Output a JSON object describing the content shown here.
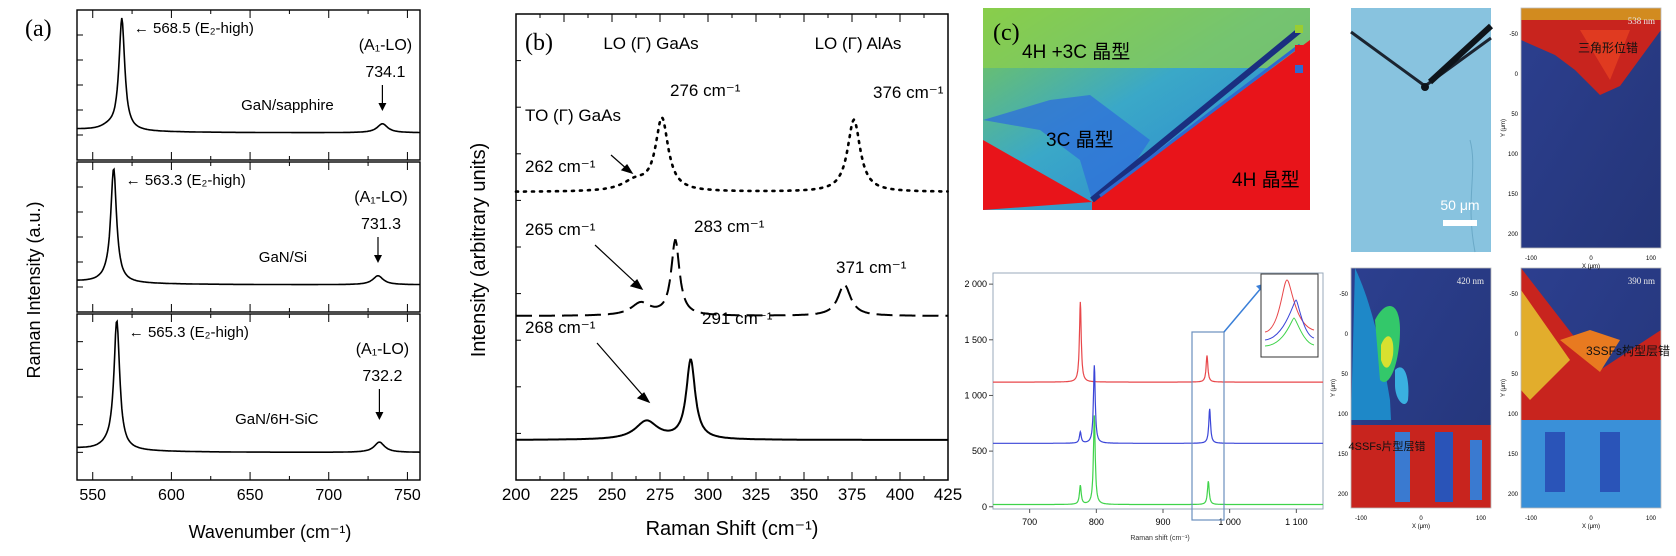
{
  "panel_a": {
    "label": "(a)",
    "ylabel": "Raman Intensity (a.u.)",
    "xlabel": "Wavenumber (cm⁻¹)",
    "xticks": [
      "550",
      "600",
      "650",
      "700",
      "750"
    ],
    "traces": [
      {
        "sample": "GaN/sapphire",
        "peak_label": "← 568.5 (E₂-high)",
        "mode_label": "(A₁-LO)",
        "mode_value": "734.1"
      },
      {
        "sample": "GaN/Si",
        "peak_label": "← 563.3 (E₂-high)",
        "mode_label": "(A₁-LO)",
        "mode_value": "731.3"
      },
      {
        "sample": "GaN/6H-SiC",
        "peak_label": "← 565.3 (E₂-high)",
        "mode_label": "(A₁-LO)",
        "mode_value": "732.2"
      }
    ]
  },
  "panel_b": {
    "label": "(b)",
    "ylabel": "Intensity (arbitrary units)",
    "xlabel": "Raman Shift (cm⁻¹)",
    "xticks": [
      "200",
      "225",
      "250",
      "275",
      "300",
      "325",
      "350",
      "375",
      "400",
      "425"
    ],
    "annotations": {
      "lo_gaas": "LO (Γ) GaAs",
      "lo_alas": "LO (Γ) AlAs",
      "to_gaas": "TO (Γ) GaAs",
      "a1": "276 cm⁻¹",
      "a2": "376 cm⁻¹",
      "a3": "262 cm⁻¹",
      "b1": "265 cm⁻¹",
      "b2": "283 cm⁻¹",
      "b3": "371 cm⁻¹",
      "c1": "268 cm⁻¹",
      "c2": "291 cm⁻¹"
    }
  },
  "panel_c": {
    "label": "(c)",
    "map_labels": {
      "poly": "4H +3C 晶型",
      "c3": "3C 晶型",
      "h4": "4H 晶型"
    },
    "scale_bar": "50 μm",
    "spectrum_xlabel": "Raman shift (cm⁻¹)",
    "spectrum_xticks": [
      "700",
      "800",
      "900",
      "1 000",
      "1 100"
    ],
    "spectrum_yticks": [
      "0",
      "500",
      "1 000",
      "1 500",
      "2 000"
    ],
    "maps": [
      {
        "nm": "538 nm",
        "text": "三角形位错"
      },
      {
        "nm": "420 nm",
        "text": "4SSFs片型层错"
      },
      {
        "nm": "390 nm",
        "text": "3SSFs构型层错"
      }
    ],
    "map_axis_x": "X (μm)",
    "map_axis_y": "Y (μm)",
    "map_xticks": [
      "-100",
      "0",
      "100"
    ],
    "map_yticks": [
      "-50",
      "0",
      "50",
      "100",
      "150",
      "200"
    ]
  },
  "chart_data": [
    {
      "type": "line",
      "title": "(a)",
      "xlabel": "Wavenumber (cm⁻¹)",
      "ylabel": "Raman Intensity (a.u.)",
      "xlim": [
        540,
        758
      ],
      "series": [
        {
          "name": "GaN/sapphire",
          "peaks": [
            {
              "x": 568.5,
              "label": "E₂-high",
              "rel": 1.0
            },
            {
              "x": 734.1,
              "label": "A₁-LO",
              "rel": 0.08
            }
          ]
        },
        {
          "name": "GaN/Si",
          "peaks": [
            {
              "x": 563.3,
              "label": "E₂-high",
              "rel": 1.0
            },
            {
              "x": 731.3,
              "label": "A₁-LO",
              "rel": 0.08
            }
          ]
        },
        {
          "name": "GaN/6H-SiC",
          "peaks": [
            {
              "x": 565.3,
              "label": "E₂-high",
              "rel": 1.0
            },
            {
              "x": 732.2,
              "label": "A₁-LO",
              "rel": 0.08
            }
          ]
        }
      ]
    },
    {
      "type": "line",
      "title": "(b)",
      "xlabel": "Raman Shift (cm⁻¹)",
      "ylabel": "Intensity (arbitrary units)",
      "xlim": [
        200,
        425
      ],
      "series": [
        {
          "style": "dotted",
          "peaks": [
            {
              "x": 262,
              "rel": 0.08
            },
            {
              "x": 276,
              "rel": 0.6
            },
            {
              "x": 376,
              "rel": 0.6
            }
          ]
        },
        {
          "style": "dashed",
          "peaks": [
            {
              "x": 265,
              "rel": 0.1
            },
            {
              "x": 283,
              "rel": 0.6
            },
            {
              "x": 371,
              "rel": 0.25
            }
          ]
        },
        {
          "style": "solid",
          "peaks": [
            {
              "x": 268,
              "rel": 0.14
            },
            {
              "x": 291,
              "rel": 0.6
            }
          ]
        }
      ]
    },
    {
      "type": "line",
      "title": "(c)",
      "xlabel": "Raman shift (cm⁻¹)",
      "xlim": [
        645,
        1140
      ],
      "ylim": [
        -20,
        2100
      ],
      "series": [
        {
          "color": "#e8474a",
          "offset": 1120,
          "peaks": [
            {
              "x": 776,
              "h": 720
            },
            {
              "x": 966,
              "h": 240
            }
          ]
        },
        {
          "color": "#3a45d8",
          "offset": 570,
          "peaks": [
            {
              "x": 776,
              "h": 100
            },
            {
              "x": 797,
              "h": 700
            },
            {
              "x": 970,
              "h": 310
            }
          ]
        },
        {
          "color": "#3fd34a",
          "offset": 20,
          "peaks": [
            {
              "x": 776,
              "h": 170
            },
            {
              "x": 797,
              "h": 800
            },
            {
              "x": 968,
              "h": 210
            }
          ]
        }
      ]
    }
  ]
}
